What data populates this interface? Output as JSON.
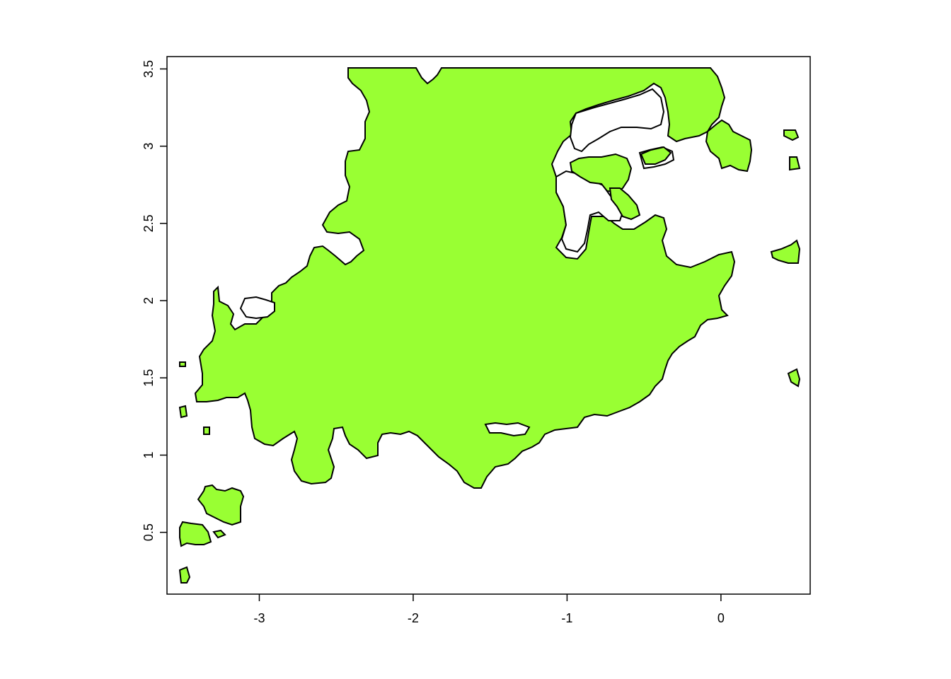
{
  "map": {
    "fill_color": "#99ff33",
    "outline_color": "#000000",
    "box": true,
    "x_ticks": [
      {
        "value": -3,
        "label": "-3"
      },
      {
        "value": -2,
        "label": "-2"
      },
      {
        "value": -1,
        "label": "-1"
      },
      {
        "value": 0,
        "label": "0"
      }
    ],
    "y_ticks": [
      {
        "value": 0.5,
        "label": "0.5"
      },
      {
        "value": 1,
        "label": "1"
      },
      {
        "value": 1.5,
        "label": "1.5"
      },
      {
        "value": 2,
        "label": "2"
      },
      {
        "value": 2.5,
        "label": "2.5"
      },
      {
        "value": 3,
        "label": "3"
      },
      {
        "value": 3.5,
        "label": "3.5"
      }
    ],
    "xlim": [
      -3.6,
      0.58
    ],
    "ylim": [
      0.1,
      3.58
    ]
  }
}
